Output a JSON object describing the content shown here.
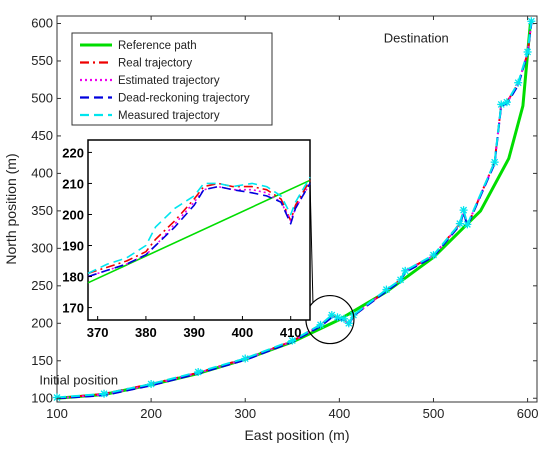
{
  "chart_data": {
    "type": "line",
    "xlabel": "East position (m)",
    "ylabel": "North position (m)",
    "xlim": [
      100,
      610
    ],
    "ylim": [
      95,
      610
    ],
    "x_ticks": [
      100,
      200,
      300,
      400,
      500,
      600
    ],
    "y_ticks": [
      100,
      150,
      200,
      250,
      300,
      350,
      400,
      450,
      500,
      550,
      600
    ],
    "grid": false,
    "legend_position": "top-left",
    "annotations": [
      {
        "text": "Destination",
        "x": 495,
        "y": 580
      },
      {
        "text": "Initial position",
        "x": 145,
        "y": 124
      }
    ],
    "series": [
      {
        "name": "Reference path",
        "color": "#00dd00",
        "style": "solid",
        "x": [
          100,
          150,
          200,
          250,
          300,
          350,
          400,
          450,
          500,
          550,
          580,
          595,
          600,
          603
        ],
        "y": [
          100,
          105,
          118,
          133,
          152,
          175,
          205,
          242,
          288,
          350,
          420,
          490,
          560,
          600
        ]
      },
      {
        "name": "Real trajectory",
        "color": "#ee0000",
        "style": "dashdot",
        "x": [
          100,
          150,
          200,
          250,
          300,
          350,
          380,
          392,
          398,
          405,
          410,
          415,
          450,
          465,
          470,
          500,
          528,
          532,
          536,
          565,
          572,
          578,
          590,
          600,
          604
        ],
        "y": [
          100,
          106,
          119,
          134,
          153,
          176,
          198,
          210,
          207,
          206,
          199,
          210,
          244,
          258,
          270,
          290,
          333,
          350,
          330,
          415,
          492,
          495,
          520,
          560,
          602
        ]
      },
      {
        "name": "Estimated trajectory",
        "color": "#ee00ee",
        "style": "dotted",
        "x": [
          100,
          150,
          200,
          250,
          300,
          350,
          380,
          392,
          398,
          405,
          410,
          415,
          450,
          465,
          470,
          500,
          528,
          532,
          536,
          565,
          572,
          578,
          590,
          600,
          604
        ],
        "y": [
          100,
          105,
          118,
          134,
          152,
          176,
          197,
          209,
          207,
          205,
          199,
          210,
          244,
          257,
          269,
          290,
          332,
          349,
          331,
          414,
          491,
          494,
          519,
          561,
          601
        ]
      },
      {
        "name": "Dead-reckoning trajectory",
        "color": "#0000dd",
        "style": "dashed",
        "x": [
          100,
          150,
          200,
          250,
          300,
          350,
          380,
          392,
          398,
          405,
          410,
          415,
          450,
          465,
          470,
          500,
          528,
          532,
          536,
          565,
          572,
          578,
          590,
          600,
          604
        ],
        "y": [
          100,
          104,
          117,
          133,
          151,
          175,
          196,
          208,
          206,
          204,
          198,
          210,
          243,
          256,
          268,
          289,
          331,
          348,
          330,
          413,
          490,
          493,
          518,
          560,
          600
        ]
      },
      {
        "name": "Measured trajectory",
        "color": "#00e5ee",
        "style": "dashed",
        "x": [
          100,
          150,
          200,
          250,
          300,
          350,
          380,
          392,
          398,
          405,
          410,
          415,
          450,
          465,
          470,
          500,
          528,
          532,
          536,
          565,
          572,
          578,
          590,
          600,
          604
        ],
        "y": [
          101,
          106,
          119,
          135,
          153,
          177,
          198,
          211,
          208,
          206,
          200,
          211,
          245,
          258,
          270,
          291,
          333,
          351,
          332,
          415,
          492,
          495,
          521,
          562,
          603
        ]
      }
    ],
    "inset": {
      "xlim": [
        368,
        414
      ],
      "ylim": [
        166,
        224
      ],
      "x_ticks": [
        370,
        380,
        390,
        400,
        410
      ],
      "y_ticks": [
        170,
        180,
        190,
        200,
        210,
        220
      ],
      "zoom_center": [
        390,
        205
      ],
      "series": [
        {
          "name": "Reference path",
          "color": "#00dd00",
          "x": [
            368,
            414
          ],
          "y": [
            178,
            211
          ]
        },
        {
          "name": "Real trajectory",
          "color": "#ee0000",
          "x": [
            368,
            372,
            376,
            380,
            382,
            386,
            390,
            392,
            395,
            398,
            402,
            405,
            408,
            410,
            411,
            414
          ],
          "y": [
            181,
            183,
            185,
            188,
            192,
            198,
            205,
            209,
            210,
            209,
            209,
            208,
            205,
            198,
            203,
            211
          ]
        },
        {
          "name": "Estimated trajectory",
          "color": "#ee00ee",
          "x": [
            368,
            372,
            376,
            380,
            382,
            386,
            390,
            392,
            395,
            398,
            402,
            405,
            408,
            410,
            411,
            414
          ],
          "y": [
            180,
            182,
            184,
            187,
            190,
            197,
            204,
            208,
            209,
            208,
            208,
            207,
            204,
            198,
            202,
            210
          ]
        },
        {
          "name": "Dead-reckoning trajectory",
          "color": "#0000dd",
          "x": [
            368,
            372,
            376,
            380,
            382,
            386,
            390,
            392,
            395,
            398,
            402,
            405,
            408,
            410,
            411,
            414
          ],
          "y": [
            180,
            182,
            184,
            187,
            190,
            196,
            203,
            208,
            209,
            208,
            207,
            206,
            204,
            197,
            202,
            210
          ]
        },
        {
          "name": "Measured trajectory",
          "color": "#00e5ee",
          "x": [
            368,
            372,
            376,
            380,
            382,
            386,
            390,
            392,
            395,
            398,
            402,
            405,
            408,
            410,
            411,
            414
          ],
          "y": [
            181,
            184,
            186,
            190,
            196,
            202,
            206,
            210,
            210,
            209,
            210,
            209,
            206,
            200,
            204,
            212
          ]
        }
      ]
    }
  }
}
